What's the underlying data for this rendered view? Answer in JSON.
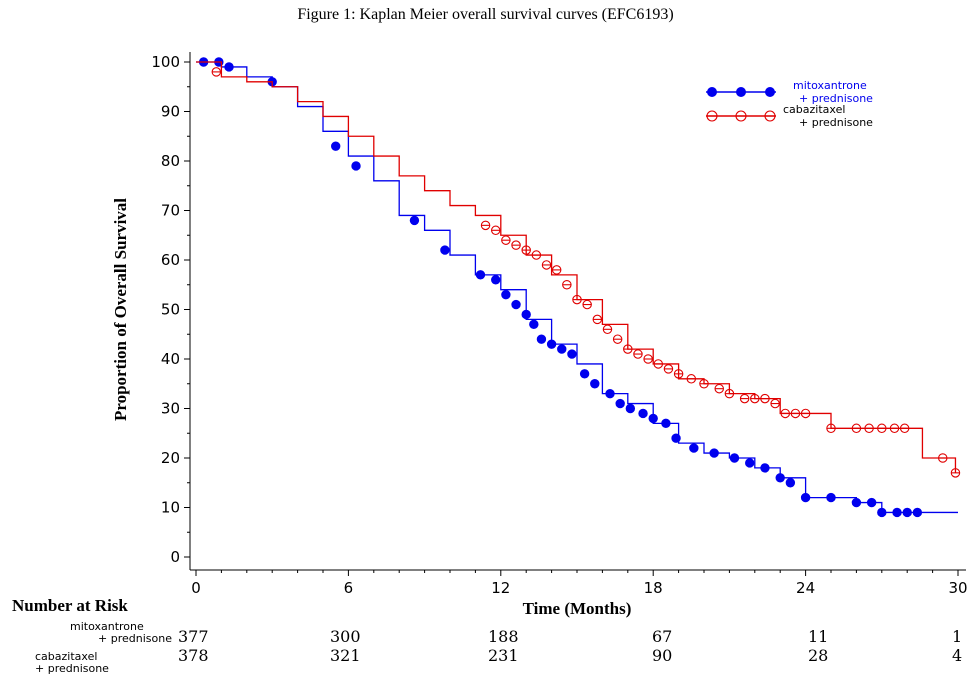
{
  "figure_title": "Figure 1: Kaplan Meier overall survival curves (EFC6193)",
  "colors": {
    "mitoxantrone": "#0000ee",
    "cabazitaxel": "#e00000"
  },
  "risk_table": {
    "heading": "Number at Risk",
    "rows": [
      {
        "label_line1": "mitoxantrone",
        "label_line2": "+ prednisone",
        "values": [
          "377",
          "300",
          "188",
          "67",
          "11",
          "1"
        ]
      },
      {
        "label_line1": "cabazitaxel",
        "label_line2": "+ prednisone",
        "values": [
          "378",
          "321",
          "231",
          "90",
          "28",
          "4"
        ]
      }
    ]
  },
  "chart_data": {
    "type": "line",
    "xlabel": "Time (Months)",
    "ylabel": "Proportion of Overall Survival",
    "xlim": [
      0,
      30
    ],
    "ylim": [
      0,
      100
    ],
    "x_ticks": [
      "0",
      "6",
      "12",
      "18",
      "24",
      "30"
    ],
    "y_ticks": [
      "0",
      "10",
      "20",
      "30",
      "40",
      "50",
      "60",
      "70",
      "80",
      "90",
      "100"
    ],
    "grid": false,
    "legend_position": "top-right",
    "series": [
      {
        "name_line1": "mitoxantrone",
        "name_line2": "+ prednisone",
        "color": "#0000ee",
        "marker": "filled-circle",
        "points": [
          [
            0,
            100
          ],
          [
            1,
            99
          ],
          [
            2,
            97
          ],
          [
            3,
            95
          ],
          [
            4,
            91
          ],
          [
            5,
            86
          ],
          [
            6,
            81
          ],
          [
            7,
            76
          ],
          [
            8,
            69
          ],
          [
            9,
            66
          ],
          [
            10,
            61
          ],
          [
            11,
            57
          ],
          [
            12,
            54
          ],
          [
            13,
            48
          ],
          [
            14,
            43
          ],
          [
            15,
            39
          ],
          [
            16,
            33
          ],
          [
            17,
            31
          ],
          [
            18,
            27
          ],
          [
            19,
            23
          ],
          [
            20,
            21
          ],
          [
            21,
            20
          ],
          [
            22,
            18
          ],
          [
            23,
            16
          ],
          [
            24,
            12
          ],
          [
            25,
            12
          ],
          [
            26,
            11
          ],
          [
            27,
            9
          ],
          [
            28,
            9
          ],
          [
            29,
            9
          ],
          [
            30,
            9
          ]
        ],
        "censored": [
          [
            0.3,
            100
          ],
          [
            0.9,
            100
          ],
          [
            1.3,
            99
          ],
          [
            3,
            96
          ],
          [
            5.5,
            83
          ],
          [
            6.3,
            79
          ],
          [
            8.6,
            68
          ],
          [
            9.8,
            62
          ],
          [
            11.2,
            57
          ],
          [
            11.8,
            56
          ],
          [
            12.2,
            53
          ],
          [
            12.6,
            51
          ],
          [
            13,
            49
          ],
          [
            13.3,
            47
          ],
          [
            13.6,
            44
          ],
          [
            14,
            43
          ],
          [
            14.4,
            42
          ],
          [
            14.8,
            41
          ],
          [
            15.3,
            37
          ],
          [
            15.7,
            35
          ],
          [
            16.3,
            33
          ],
          [
            16.7,
            31
          ],
          [
            17.1,
            30
          ],
          [
            17.6,
            29
          ],
          [
            18,
            28
          ],
          [
            18.5,
            27
          ],
          [
            18.9,
            24
          ],
          [
            19.6,
            22
          ],
          [
            20.4,
            21
          ],
          [
            21.2,
            20
          ],
          [
            21.8,
            19
          ],
          [
            22.4,
            18
          ],
          [
            23,
            16
          ],
          [
            23.4,
            15
          ],
          [
            24,
            12
          ],
          [
            25,
            12
          ],
          [
            26,
            11
          ],
          [
            26.6,
            11
          ],
          [
            27,
            9
          ],
          [
            27.6,
            9
          ],
          [
            28,
            9
          ],
          [
            28.4,
            9
          ]
        ]
      },
      {
        "name_line1": "cabazitaxel",
        "name_line2": "+ prednisone",
        "color": "#e00000",
        "marker": "open-circle",
        "points": [
          [
            0,
            100
          ],
          [
            1,
            97
          ],
          [
            2,
            96
          ],
          [
            3,
            95
          ],
          [
            4,
            92
          ],
          [
            5,
            89
          ],
          [
            6,
            85
          ],
          [
            7,
            81
          ],
          [
            8,
            77
          ],
          [
            9,
            74
          ],
          [
            10,
            71
          ],
          [
            11,
            69
          ],
          [
            12,
            65
          ],
          [
            13,
            61
          ],
          [
            14,
            57
          ],
          [
            15,
            52
          ],
          [
            16,
            47
          ],
          [
            17,
            42
          ],
          [
            18,
            39
          ],
          [
            19,
            36
          ],
          [
            20,
            35
          ],
          [
            21,
            33
          ],
          [
            22,
            32
          ],
          [
            23,
            29
          ],
          [
            24,
            29
          ],
          [
            25,
            26
          ],
          [
            26,
            26
          ],
          [
            27,
            26
          ],
          [
            28,
            26
          ],
          [
            28.6,
            20
          ],
          [
            29.5,
            20
          ],
          [
            29.9,
            17
          ]
        ],
        "censored": [
          [
            0.8,
            98
          ],
          [
            11.4,
            67
          ],
          [
            11.8,
            66
          ],
          [
            12.2,
            64
          ],
          [
            12.6,
            63
          ],
          [
            13,
            62
          ],
          [
            13.4,
            61
          ],
          [
            13.8,
            59
          ],
          [
            14.2,
            58
          ],
          [
            14.6,
            55
          ],
          [
            15,
            52
          ],
          [
            15.4,
            51
          ],
          [
            15.8,
            48
          ],
          [
            16.2,
            46
          ],
          [
            16.6,
            44
          ],
          [
            17,
            42
          ],
          [
            17.4,
            41
          ],
          [
            17.8,
            40
          ],
          [
            18.2,
            39
          ],
          [
            18.6,
            38
          ],
          [
            19,
            37
          ],
          [
            19.5,
            36
          ],
          [
            20,
            35
          ],
          [
            20.6,
            34
          ],
          [
            21,
            33
          ],
          [
            21.6,
            32
          ],
          [
            22,
            32
          ],
          [
            22.4,
            32
          ],
          [
            22.8,
            31
          ],
          [
            23.2,
            29
          ],
          [
            23.6,
            29
          ],
          [
            24,
            29
          ],
          [
            25,
            26
          ],
          [
            26,
            26
          ],
          [
            26.5,
            26
          ],
          [
            27,
            26
          ],
          [
            27.5,
            26
          ],
          [
            27.9,
            26
          ],
          [
            29.4,
            20
          ],
          [
            29.9,
            17
          ]
        ]
      }
    ]
  }
}
